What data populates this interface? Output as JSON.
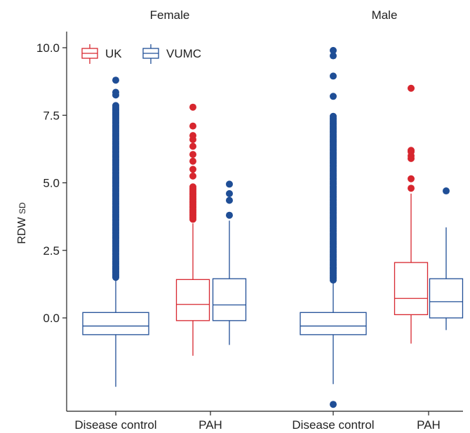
{
  "chart_data": {
    "type": "box",
    "ylabel": "RDW",
    "ylabel_sub": "SD",
    "ylim": [
      -3.2,
      10.5
    ],
    "yticks": [
      {
        "value": 10.0,
        "label": "10.0"
      },
      {
        "value": 7.5,
        "label": "7.5"
      },
      {
        "value": 5.0,
        "label": "5.0"
      },
      {
        "value": 2.5,
        "label": "2.5"
      },
      {
        "value": 0.0,
        "label": "0.0"
      }
    ],
    "legend": {
      "position": "top-left",
      "items": [
        {
          "name": "UK",
          "color": "#d7262e"
        },
        {
          "name": "VUMC",
          "color": "#1f4e96"
        }
      ]
    },
    "facets": [
      {
        "title": "Female",
        "categories": [
          "Disease control",
          "PAH"
        ],
        "boxes": [
          {
            "category": "Disease control",
            "series": "VUMC",
            "lower_whisker": -2.55,
            "q1": -0.62,
            "median": -0.3,
            "q3": 0.2,
            "upper_whisker": 1.45,
            "outliers_dense_range": [
              1.5,
              7.9
            ],
            "outliers": [
              8.25,
              8.35,
              8.8
            ]
          },
          {
            "category": "PAH",
            "series": "UK",
            "lower_whisker": -1.4,
            "q1": -0.1,
            "median": 0.5,
            "q3": 1.42,
            "upper_whisker": 3.5,
            "outliers_dense_range": [
              3.65,
              4.9
            ],
            "outliers": [
              5.25,
              5.5,
              5.8,
              6.05,
              6.35,
              6.6,
              6.75,
              7.1,
              7.8
            ]
          },
          {
            "category": "PAH",
            "series": "VUMC",
            "lower_whisker": -1.0,
            "q1": -0.1,
            "median": 0.48,
            "q3": 1.45,
            "upper_whisker": 3.6,
            "outliers": [
              3.8,
              4.35,
              4.6,
              4.95
            ]
          }
        ]
      },
      {
        "title": "Male",
        "categories": [
          "Disease control",
          "PAH"
        ],
        "boxes": [
          {
            "category": "Disease control",
            "series": "VUMC",
            "lower_whisker": -2.45,
            "q1": -0.62,
            "median": -0.3,
            "q3": 0.2,
            "upper_whisker": 1.35,
            "outliers_dense_range": [
              1.4,
              7.5
            ],
            "outliers": [
              -3.2,
              8.2,
              8.95,
              9.7,
              9.9
            ]
          },
          {
            "category": "PAH",
            "series": "UK",
            "lower_whisker": -0.95,
            "q1": 0.12,
            "median": 0.72,
            "q3": 2.05,
            "upper_whisker": 4.6,
            "outliers": [
              4.8,
              5.15,
              5.9,
              6.0,
              6.15,
              6.2,
              8.5
            ]
          },
          {
            "category": "PAH",
            "series": "VUMC",
            "lower_whisker": -0.45,
            "q1": 0.0,
            "median": 0.6,
            "q3": 1.45,
            "upper_whisker": 3.35,
            "outliers": [
              4.7
            ]
          }
        ]
      }
    ]
  }
}
